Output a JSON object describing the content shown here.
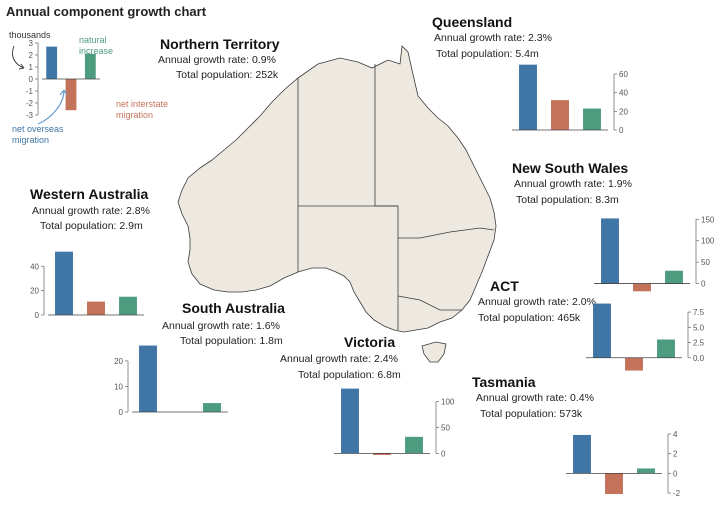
{
  "title": "Annual component growth chart",
  "colors": {
    "overseas": "#3f76a6",
    "interstate": "#c5725b",
    "natural": "#4e9c80",
    "land": "#ede9e1",
    "border": "#3a3a3a",
    "axis": "#777777"
  },
  "legend_chart": {
    "unit_label": "thousands",
    "natural_label": [
      "natural",
      "increase"
    ],
    "overseas_label": [
      "net overseas",
      "migration"
    ],
    "interstate_label": [
      "net interstate",
      "migration"
    ]
  },
  "stat_labels": {
    "growth": "Annual growth rate:",
    "population": "Total population:"
  },
  "chart_data": [
    {
      "type": "bar",
      "id": "legend",
      "categories": [
        "net overseas migration",
        "net interstate migration",
        "natural increase"
      ],
      "values": [
        2.7,
        -2.6,
        2.1
      ],
      "ylim": [
        -3,
        3
      ],
      "ticks": [
        3,
        2,
        1,
        0,
        -1,
        -2,
        -3
      ],
      "tick_labels": [
        "3",
        "2",
        "1",
        "0",
        "-1",
        "-2",
        "-3"
      ],
      "axis_side": "left"
    },
    {
      "type": "bar",
      "id": "nt",
      "name": "Northern Territory",
      "growth_rate": "0.9%",
      "population": "252k"
    },
    {
      "type": "bar",
      "id": "qld",
      "name": "Queensland",
      "growth_rate": "2.3%",
      "population": "5.4m",
      "categories": [
        "net overseas migration",
        "net interstate migration",
        "natural increase"
      ],
      "values": [
        70,
        32,
        23
      ],
      "ylim": [
        0,
        75
      ],
      "ticks": [
        60,
        40,
        20,
        0
      ],
      "tick_labels": [
        "60",
        "40",
        "20",
        "0"
      ],
      "axis_side": "right"
    },
    {
      "type": "bar",
      "id": "nsw",
      "name": "New South Wales",
      "growth_rate": "1.9%",
      "population": "8.3m",
      "categories": [
        "net overseas migration",
        "net interstate migration",
        "natural increase"
      ],
      "values": [
        152,
        -18,
        30
      ],
      "ylim": [
        -22,
        160
      ],
      "ticks": [
        150,
        100,
        50,
        0
      ],
      "tick_labels": [
        "150",
        "100",
        "50",
        "0"
      ],
      "axis_side": "right"
    },
    {
      "type": "bar",
      "id": "wa",
      "name": "Western Australia",
      "growth_rate": "2.8%",
      "population": "2.9m",
      "categories": [
        "net overseas migration",
        "net interstate migration",
        "natural increase"
      ],
      "values": [
        52,
        11,
        15
      ],
      "ylim": [
        0,
        55
      ],
      "ticks": [
        40,
        20,
        0
      ],
      "tick_labels": [
        "40",
        "20",
        "0"
      ],
      "axis_side": "left"
    },
    {
      "type": "bar",
      "id": "act",
      "name": "ACT",
      "growth_rate": "2.0%",
      "population": "465k",
      "categories": [
        "net overseas migration",
        "net interstate migration",
        "natural increase"
      ],
      "values": [
        8.9,
        -2.1,
        3.0
      ],
      "ylim": [
        -2.5,
        8.5
      ],
      "ticks": [
        7.5,
        5,
        2.5,
        0
      ],
      "tick_labels": [
        "7.5",
        "5.0",
        "2.5",
        "0.0"
      ],
      "axis_side": "right"
    },
    {
      "type": "bar",
      "id": "sa",
      "name": "South Australia",
      "growth_rate": "1.6%",
      "population": "1.8m",
      "categories": [
        "net overseas migration",
        "net interstate migration",
        "natural increase"
      ],
      "values": [
        26,
        0,
        3.5
      ],
      "ylim": [
        0,
        27
      ],
      "ticks": [
        20,
        10,
        0
      ],
      "tick_labels": [
        "20",
        "10",
        "0"
      ],
      "axis_side": "left"
    },
    {
      "type": "bar",
      "id": "vic",
      "name": "Victoria",
      "growth_rate": "2.4%",
      "population": "6.8m",
      "categories": [
        "net overseas migration",
        "net interstate migration",
        "natural increase"
      ],
      "values": [
        125,
        -3,
        32
      ],
      "ylim": [
        -5,
        130
      ],
      "ticks": [
        100,
        50,
        0
      ],
      "tick_labels": [
        "100",
        "50",
        "0"
      ],
      "axis_side": "right"
    },
    {
      "type": "bar",
      "id": "tas",
      "name": "Tasmania",
      "growth_rate": "0.4%",
      "population": "573k",
      "categories": [
        "net overseas migration",
        "net interstate migration",
        "natural increase"
      ],
      "values": [
        3.9,
        -2.1,
        0.5
      ],
      "ylim": [
        -2.5,
        4.3
      ],
      "ticks": [
        4,
        2,
        0,
        -2
      ],
      "tick_labels": [
        "4",
        "2",
        "0",
        "-2"
      ],
      "axis_side": "right"
    }
  ]
}
